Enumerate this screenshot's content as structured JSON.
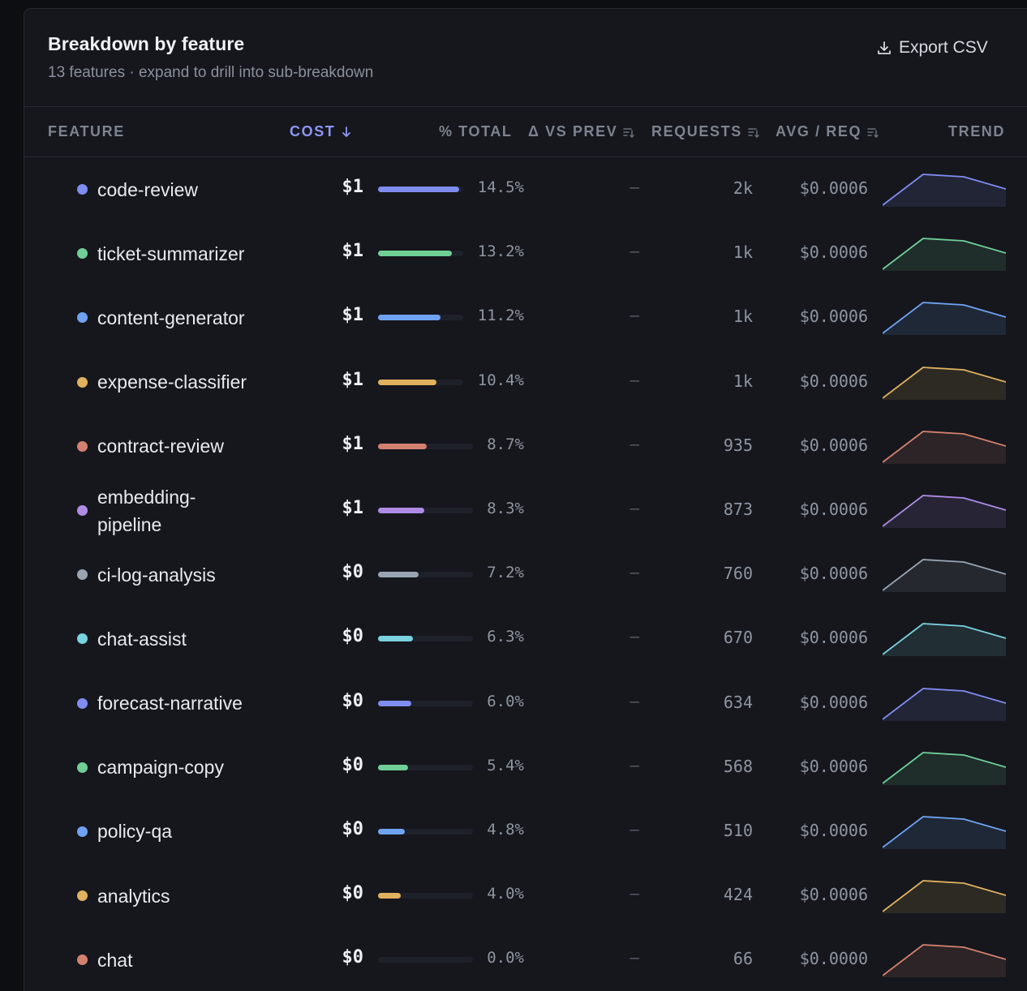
{
  "header": {
    "title": "Breakdown by feature",
    "subtitle": "13 features · expand to drill into sub-breakdown",
    "export_label": "Export CSV"
  },
  "columns": {
    "feature": "FEATURE",
    "cost": "COST",
    "pct_total": "% TOTAL",
    "delta": "Δ VS PREV",
    "requests": "REQUESTS",
    "avg": "AVG / REQ",
    "trend": "TREND"
  },
  "sort": {
    "column": "cost",
    "direction": "desc"
  },
  "rows": [
    {
      "name": "code-review",
      "cost": "$1",
      "pct": "14.5%",
      "pct_value": 14.5,
      "delta": "—",
      "requests": "2k",
      "avg": "$0.0006",
      "color": "#7f8cf0"
    },
    {
      "name": "ticket-summarizer",
      "cost": "$1",
      "pct": "13.2%",
      "pct_value": 13.2,
      "delta": "—",
      "requests": "1k",
      "avg": "$0.0006",
      "color": "#6fcf97"
    },
    {
      "name": "content-generator",
      "cost": "$1",
      "pct": "11.2%",
      "pct_value": 11.2,
      "delta": "—",
      "requests": "1k",
      "avg": "$0.0006",
      "color": "#6fa3f2"
    },
    {
      "name": "expense-classifier",
      "cost": "$1",
      "pct": "10.4%",
      "pct_value": 10.4,
      "delta": "—",
      "requests": "1k",
      "avg": "$0.0006",
      "color": "#e0b15e"
    },
    {
      "name": "contract-review",
      "cost": "$1",
      "pct": "8.7%",
      "pct_value": 8.7,
      "delta": "—",
      "requests": "935",
      "avg": "$0.0006",
      "color": "#d4806f"
    },
    {
      "name": "embedding-pipeline",
      "cost": "$1",
      "pct": "8.3%",
      "pct_value": 8.3,
      "delta": "—",
      "requests": "873",
      "avg": "$0.0006",
      "color": "#b08be6"
    },
    {
      "name": "ci-log-analysis",
      "cost": "$0",
      "pct": "7.2%",
      "pct_value": 7.2,
      "delta": "—",
      "requests": "760",
      "avg": "$0.0006",
      "color": "#99a4b3"
    },
    {
      "name": "chat-assist",
      "cost": "$0",
      "pct": "6.3%",
      "pct_value": 6.3,
      "delta": "—",
      "requests": "670",
      "avg": "$0.0006",
      "color": "#79d2de"
    },
    {
      "name": "forecast-narrative",
      "cost": "$0",
      "pct": "6.0%",
      "pct_value": 6.0,
      "delta": "—",
      "requests": "634",
      "avg": "$0.0006",
      "color": "#7f8cf0"
    },
    {
      "name": "campaign-copy",
      "cost": "$0",
      "pct": "5.4%",
      "pct_value": 5.4,
      "delta": "—",
      "requests": "568",
      "avg": "$0.0006",
      "color": "#6fcf97"
    },
    {
      "name": "policy-qa",
      "cost": "$0",
      "pct": "4.8%",
      "pct_value": 4.8,
      "delta": "—",
      "requests": "510",
      "avg": "$0.0006",
      "color": "#6fa3f2"
    },
    {
      "name": "analytics",
      "cost": "$0",
      "pct": "4.0%",
      "pct_value": 4.0,
      "delta": "—",
      "requests": "424",
      "avg": "$0.0006",
      "color": "#e0b15e"
    },
    {
      "name": "chat",
      "cost": "$0",
      "pct": "0.0%",
      "pct_value": 0.0,
      "delta": "—",
      "requests": "66",
      "avg": "$0.0000",
      "color": "#d4806f"
    }
  ]
}
